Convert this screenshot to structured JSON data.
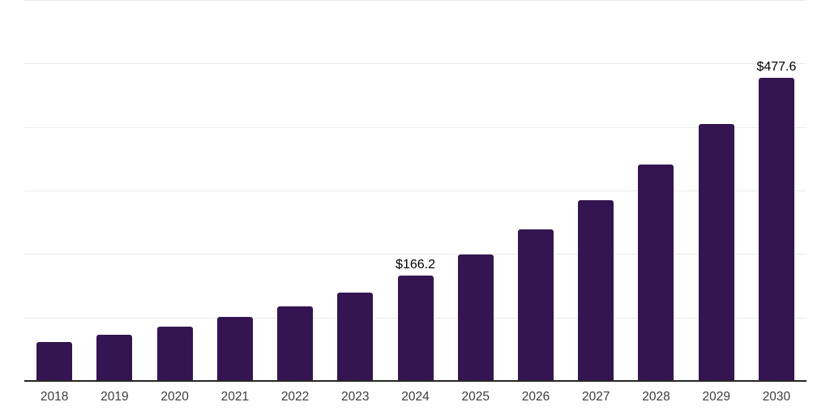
{
  "chart_data": {
    "type": "bar",
    "title": "",
    "xlabel": "",
    "ylabel": "",
    "categories": [
      "2018",
      "2019",
      "2020",
      "2021",
      "2022",
      "2023",
      "2024",
      "2025",
      "2026",
      "2027",
      "2028",
      "2029",
      "2030"
    ],
    "values": [
      61.0,
      72.2,
      85.8,
      100.3,
      117.7,
      139.8,
      166.2,
      198.6,
      238.2,
      285.0,
      340.3,
      405.1,
      477.6
    ],
    "data_labels": [
      {
        "index": 6,
        "text": "$166.2"
      },
      {
        "index": 12,
        "text": "$477.6"
      }
    ],
    "ylim": [
      0,
      600
    ],
    "gridline_step": 100,
    "grid": "horizontal",
    "legend_position": "none",
    "y_axis_tick_labels": "none",
    "colors": {
      "bar_fill": "#341551",
      "axis_line": "#262626",
      "gridline": "#ebebeb",
      "x_tick_label": "#3c3c3c",
      "data_label": "#000000",
      "background": "#ffffff"
    }
  }
}
